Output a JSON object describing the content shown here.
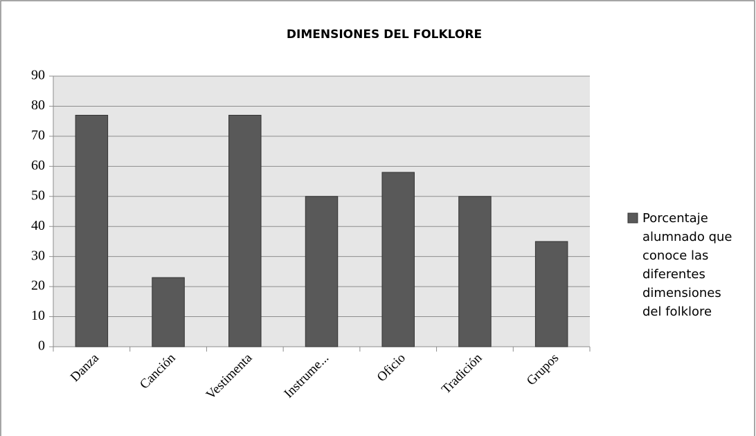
{
  "chart_data": {
    "type": "bar",
    "title": "DIMENSIONES DEL FOLKLORE",
    "categories": [
      "Danza",
      "Canción",
      "Vestimenta",
      "Instrume...",
      "Oficio",
      "Tradición",
      "Grupos"
    ],
    "series": [
      {
        "name": "Porcentaje alumnado que conoce las diferentes dimensiones del folklore",
        "color": "#595959",
        "values": [
          77,
          23,
          77,
          50,
          58,
          50,
          35
        ]
      }
    ],
    "ylim": [
      0,
      90
    ],
    "yticks": [
      0,
      10,
      20,
      30,
      40,
      50,
      60,
      70,
      80,
      90
    ],
    "grid": true,
    "legend": "right"
  }
}
